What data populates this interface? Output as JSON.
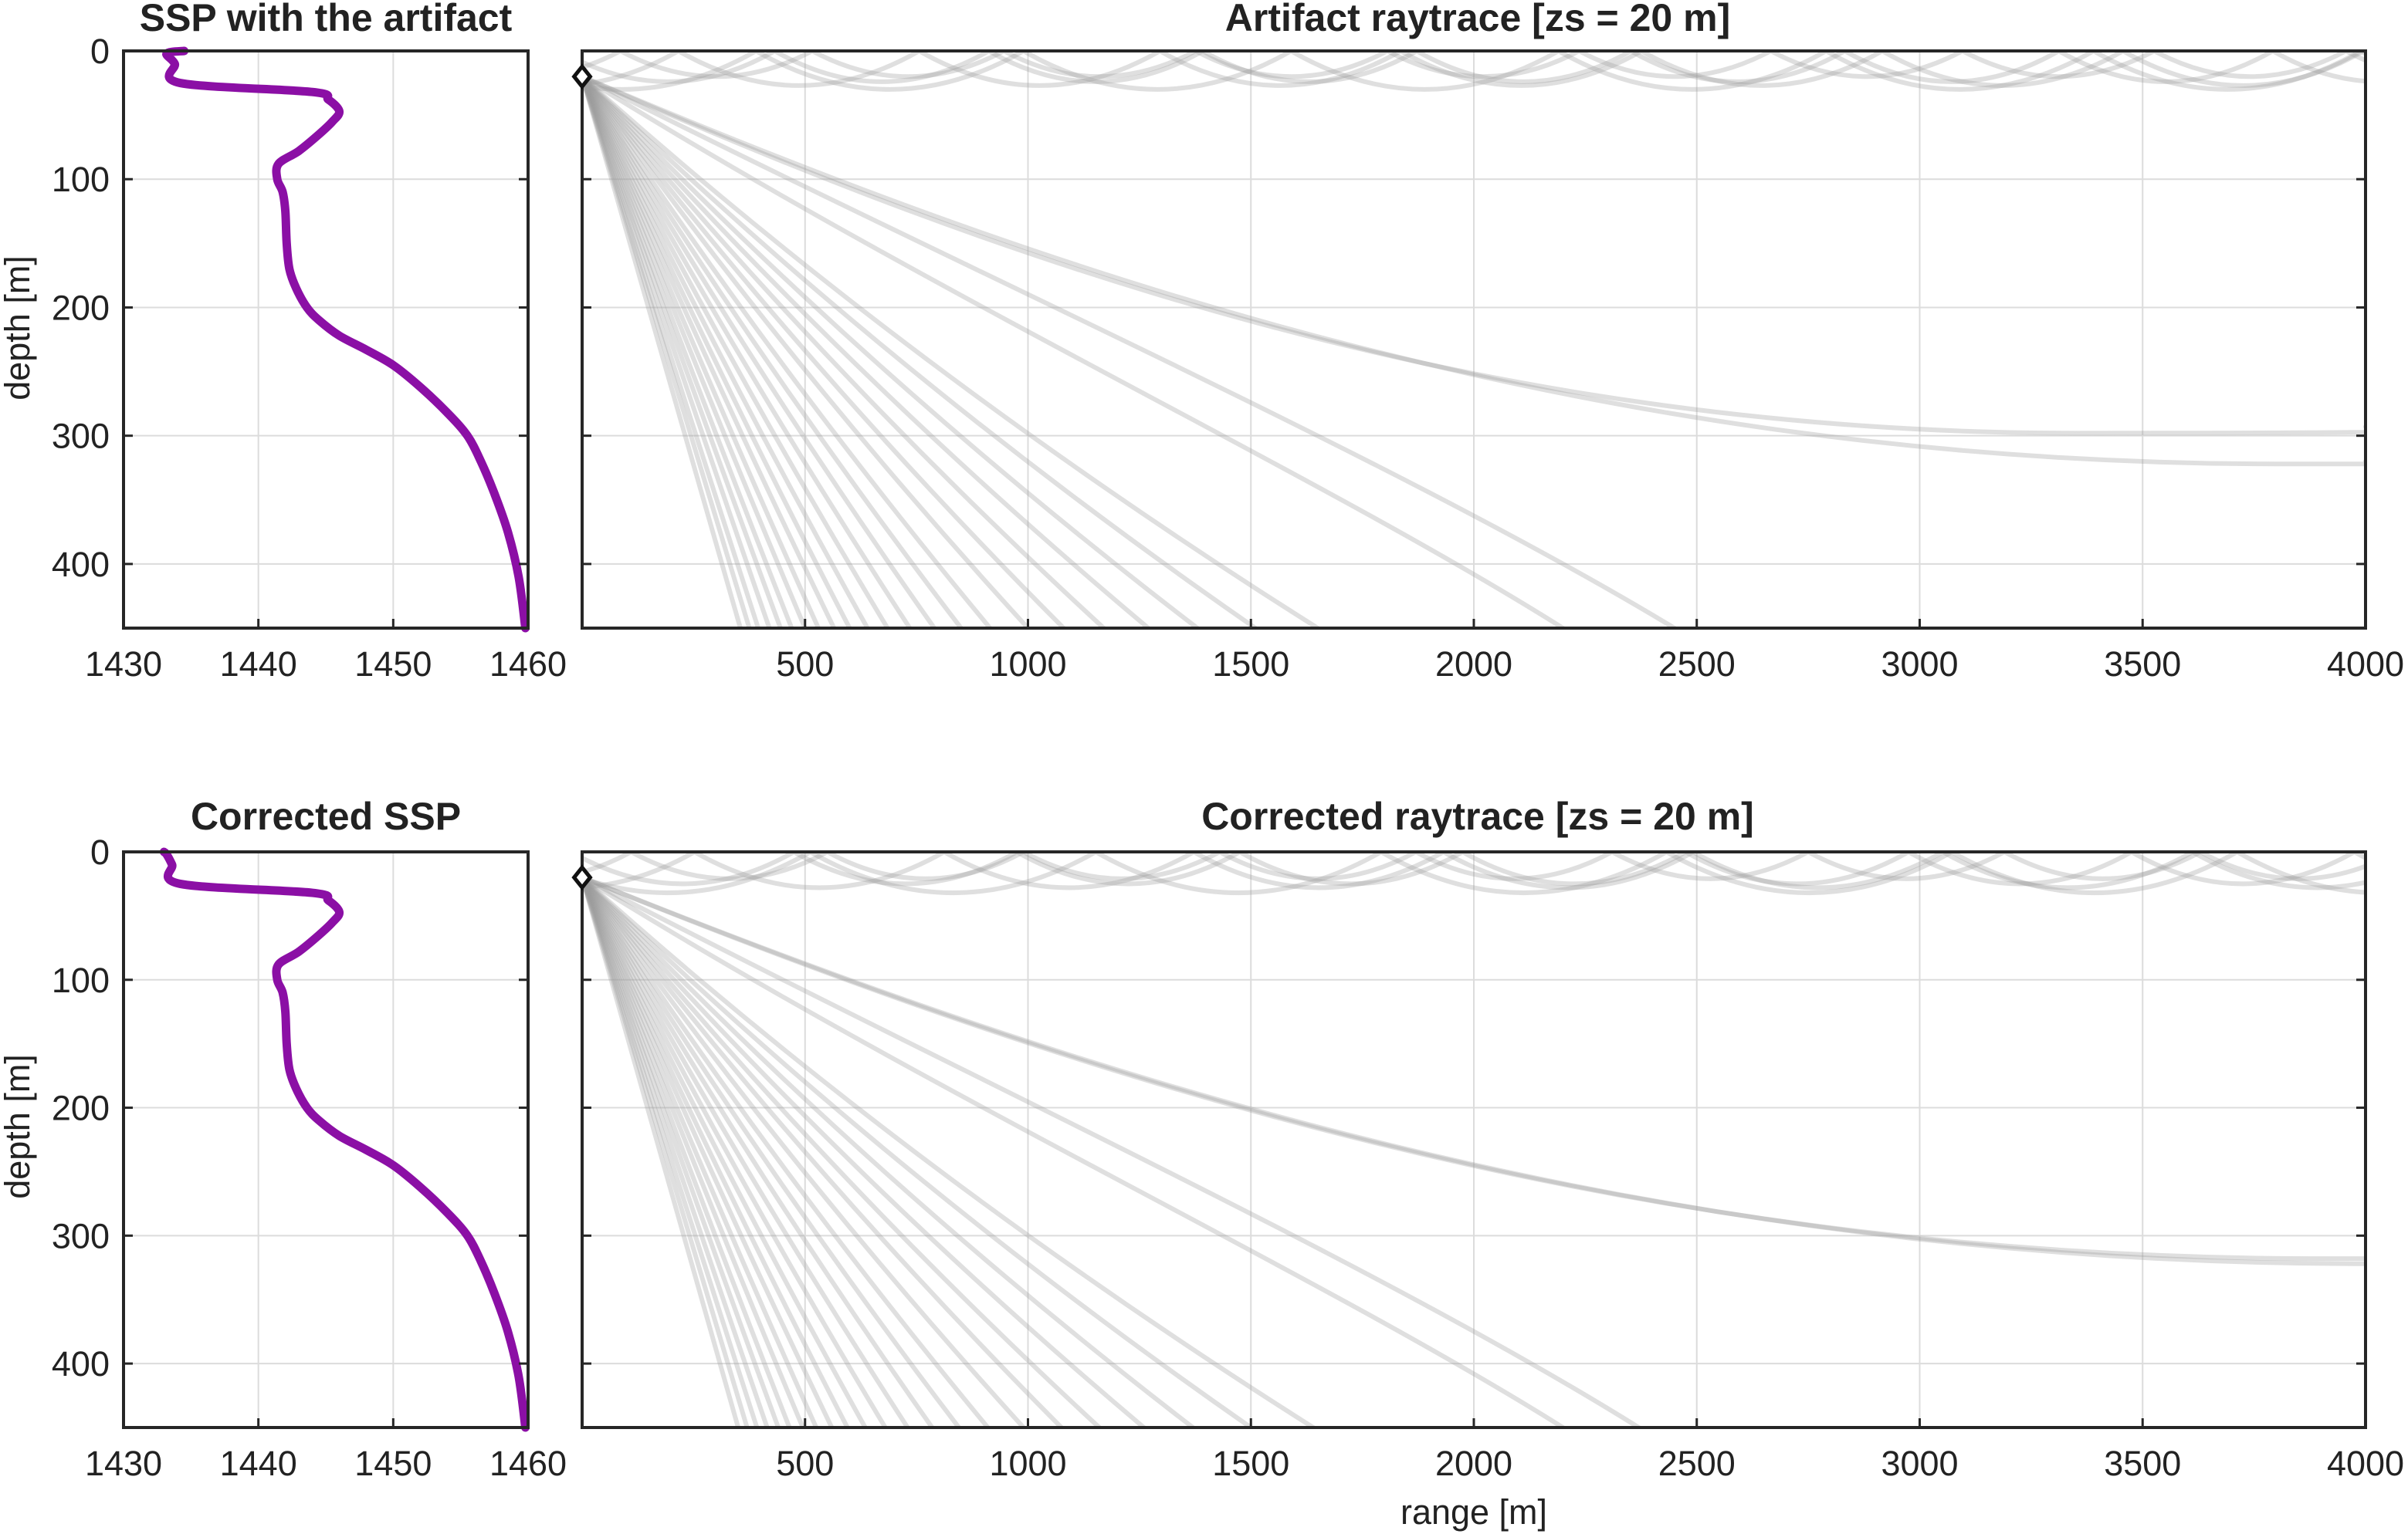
{
  "figure": {
    "panels": [
      {
        "id": "ssp-top",
        "title": "SSP with the artifact",
        "ylabel": "depth [m]",
        "xlabel": ""
      },
      {
        "id": "ray-top",
        "title": "Artifact raytrace [zs = 20 m]",
        "ylabel": "",
        "xlabel": ""
      },
      {
        "id": "ssp-bottom",
        "title": "Corrected SSP",
        "ylabel": "depth [m]",
        "xlabel": ""
      },
      {
        "id": "ray-bottom",
        "title": "Corrected raytrace [zs = 20 m]",
        "ylabel": "",
        "xlabel": "range [m]"
      }
    ]
  },
  "chart_data": [
    {
      "type": "line",
      "title": "SSP with the artifact",
      "xlabel": "",
      "ylabel": "depth [m]",
      "xlim": [
        1430,
        1460
      ],
      "ylim": [
        0,
        450
      ],
      "y_reversed": true,
      "grid": true,
      "xticks": [
        1430,
        1440,
        1450,
        1460
      ],
      "yticks": [
        0,
        100,
        200,
        300,
        400
      ],
      "line_color": "#8B0FA5",
      "series": [
        {
          "x": [
            1434.5,
            1433.2,
            1433.8,
            1434.2,
            1444,
            1445.2,
            1446,
            1445.5,
            1444.5,
            1443,
            1441.5,
            1441.4,
            1441.8,
            1442,
            1442.1,
            1442.3,
            1442.8,
            1443.6,
            1444.5,
            1446,
            1448,
            1450,
            1452,
            1454,
            1455.5,
            1456.5,
            1457.5,
            1458.5,
            1459.3,
            1459.8
          ],
          "y": [
            0,
            2,
            10,
            25,
            32,
            38,
            47,
            55,
            65,
            78,
            88,
            100,
            110,
            125,
            150,
            170,
            185,
            200,
            210,
            222,
            233,
            245,
            262,
            282,
            300,
            320,
            345,
            375,
            410,
            450
          ]
        }
      ]
    },
    {
      "type": "line",
      "title": "Artifact raytrace [zs = 20 m]",
      "xlabel": "",
      "ylabel": "",
      "xlim": [
        0,
        4000
      ],
      "ylim": [
        0,
        450
      ],
      "y_reversed": true,
      "grid": true,
      "xticks": [
        500,
        1000,
        1500,
        2000,
        2500,
        3000,
        3500,
        4000
      ],
      "yticks": [
        0,
        100,
        200,
        300,
        400
      ],
      "source": {
        "range": 0,
        "depth": 20
      },
      "ray_color": "#9a9a9a",
      "steep_ray_bottom_ranges": [
        355,
        375,
        395,
        420,
        445,
        470,
        500,
        530,
        565,
        600,
        640,
        685,
        735,
        790,
        850,
        915,
        1000,
        1080,
        1170,
        1270,
        1380,
        1510,
        1650
      ],
      "shallow_rays": [
        {
          "bottom_range": 2200,
          "curvature": 0.3
        },
        {
          "bottom_range": 2450,
          "curvature": 0.5
        }
      ],
      "turning_rays": [
        {
          "turn_range": 3350,
          "turn_depth": 298,
          "end_depth": 293
        },
        {
          "turn_range": 3800,
          "turn_depth": 322,
          "end_depth": 320
        }
      ],
      "surface_duct_rays": [
        {
          "max_depth": 30,
          "half_period": 600,
          "phase": 0.35
        },
        {
          "max_depth": 27,
          "half_period": 540,
          "phase": 0.6
        },
        {
          "max_depth": 24,
          "half_period": 480,
          "phase": 0.1
        },
        {
          "max_depth": 20,
          "half_period": 430,
          "phase": 0.8
        }
      ]
    },
    {
      "type": "line",
      "title": "Corrected SSP",
      "xlabel": "",
      "ylabel": "depth [m]",
      "xlim": [
        1430,
        1460
      ],
      "ylim": [
        0,
        450
      ],
      "y_reversed": true,
      "grid": true,
      "xticks": [
        1430,
        1440,
        1450,
        1460
      ],
      "yticks": [
        0,
        100,
        200,
        300,
        400
      ],
      "line_color": "#8B0FA5",
      "series": [
        {
          "x": [
            1433.0,
            1433.2,
            1433.6,
            1434.2,
            1444,
            1445.2,
            1446,
            1445.5,
            1444.5,
            1443,
            1441.5,
            1441.4,
            1441.8,
            1442,
            1442.1,
            1442.3,
            1442.8,
            1443.6,
            1444.5,
            1446,
            1448,
            1450,
            1452,
            1454,
            1455.5,
            1456.5,
            1457.5,
            1458.5,
            1459.3,
            1459.8
          ],
          "y": [
            0,
            2,
            10,
            25,
            32,
            38,
            47,
            55,
            65,
            78,
            88,
            100,
            110,
            125,
            150,
            170,
            185,
            200,
            210,
            222,
            233,
            245,
            262,
            282,
            300,
            320,
            345,
            375,
            410,
            450
          ]
        }
      ]
    },
    {
      "type": "line",
      "title": "Corrected raytrace [zs = 20 m]",
      "xlabel": "range [m]",
      "ylabel": "",
      "xlim": [
        0,
        4000
      ],
      "ylim": [
        0,
        450
      ],
      "y_reversed": true,
      "grid": true,
      "xticks": [
        500,
        1000,
        1500,
        2000,
        2500,
        3000,
        3500,
        4000
      ],
      "yticks": [
        0,
        100,
        200,
        300,
        400
      ],
      "source": {
        "range": 0,
        "depth": 20
      },
      "ray_color": "#9a9a9a",
      "steep_ray_bottom_ranges": [
        350,
        370,
        392,
        415,
        440,
        465,
        495,
        525,
        560,
        595,
        635,
        680,
        730,
        785,
        845,
        910,
        990,
        1075,
        1160,
        1260,
        1370,
        1500,
        1640
      ],
      "shallow_rays": [
        {
          "bottom_range": 2200,
          "curvature": 0.3
        },
        {
          "bottom_range": 2370,
          "curvature": 0.5
        }
      ],
      "turning_rays": [
        {
          "turn_range": 3900,
          "turn_depth": 318,
          "end_depth": 318
        },
        {
          "turn_range": 4000,
          "turn_depth": 322,
          "end_depth": 322
        }
      ],
      "surface_duct_rays": [
        {
          "max_depth": 32,
          "half_period": 640,
          "phase": 0.2
        },
        {
          "max_depth": 28,
          "half_period": 560,
          "phase": 0.55
        },
        {
          "max_depth": 25,
          "half_period": 500,
          "phase": 0.05
        },
        {
          "max_depth": 21,
          "half_period": 440,
          "phase": 0.75
        }
      ]
    }
  ]
}
